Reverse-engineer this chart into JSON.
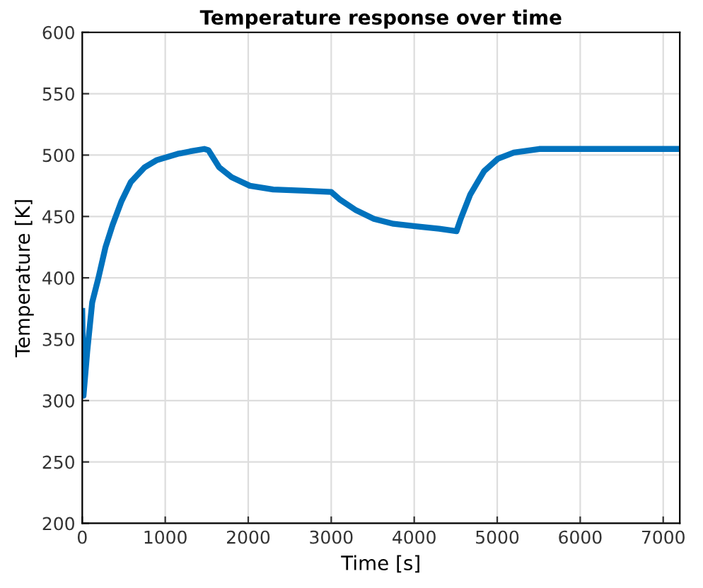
{
  "chart_data": {
    "type": "line",
    "title": "Temperature response over time",
    "xlabel": "Time [s]",
    "ylabel": "Temperature [K]",
    "series": [
      {
        "color": "#0072bd",
        "x": [
          0,
          15,
          60,
          120,
          195,
          280,
          365,
          470,
          585,
          750,
          900,
          1000,
          1150,
          1300,
          1470,
          1520,
          1650,
          1800,
          2020,
          2300,
          2680,
          3000,
          3100,
          3300,
          3515,
          3750,
          4013,
          4300,
          4510,
          4560,
          4676,
          4842,
          5008,
          5200,
          5506,
          6000,
          6500,
          7200
        ],
        "values": [
          373,
          304,
          340,
          380,
          400,
          425,
          443,
          462,
          478,
          490,
          496,
          498,
          501,
          503,
          505,
          504,
          490,
          482,
          475,
          472,
          471,
          470,
          464,
          455,
          448,
          444,
          442,
          440,
          438,
          448,
          468,
          487,
          497,
          502,
          505,
          505,
          505,
          505
        ]
      }
    ],
    "xlim": [
      0,
      7200
    ],
    "xticks": [
      0,
      1000,
      2000,
      3000,
      4000,
      5000,
      6000,
      7000
    ],
    "ylim": [
      200,
      600
    ],
    "yticks": [
      200,
      250,
      300,
      350,
      400,
      450,
      500,
      550,
      600
    ],
    "grid": true,
    "marker": "none",
    "line_style": "solid"
  }
}
